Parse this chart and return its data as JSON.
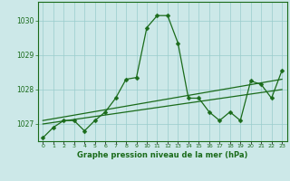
{
  "x": [
    0,
    1,
    2,
    3,
    4,
    5,
    6,
    7,
    8,
    9,
    10,
    11,
    12,
    13,
    14,
    15,
    16,
    17,
    18,
    19,
    20,
    21,
    22,
    23
  ],
  "y": [
    1026.6,
    1026.9,
    1027.1,
    1027.1,
    1026.8,
    1027.1,
    1027.35,
    1027.75,
    1028.3,
    1028.35,
    1029.8,
    1030.15,
    1030.15,
    1029.35,
    1027.75,
    1027.75,
    1027.35,
    1027.1,
    1027.35,
    1027.1,
    1028.25,
    1028.15,
    1027.75,
    1028.55
  ],
  "trend1_x": [
    0,
    23
  ],
  "trend1_y": [
    1027.0,
    1028.0
  ],
  "trend2_x": [
    0,
    23
  ],
  "trend2_y": [
    1027.1,
    1028.3
  ],
  "line_color": "#1a6b1a",
  "bg_color": "#cce8e8",
  "grid_color": "#99cccc",
  "xlabel": "Graphe pression niveau de la mer (hPa)",
  "xlim": [
    -0.5,
    23.5
  ],
  "ylim": [
    1026.5,
    1030.55
  ],
  "yticks": [
    1027,
    1028,
    1029,
    1030
  ],
  "xticks": [
    0,
    1,
    2,
    3,
    4,
    5,
    6,
    7,
    8,
    9,
    10,
    11,
    12,
    13,
    14,
    15,
    16,
    17,
    18,
    19,
    20,
    21,
    22,
    23
  ]
}
